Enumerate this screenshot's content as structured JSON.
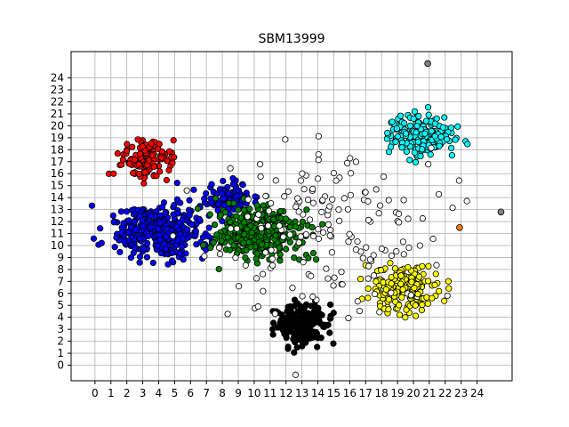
{
  "chart_data": {
    "type": "scatter",
    "title": "SBM13999",
    "xlabel": "",
    "ylabel": "",
    "xlim": [
      -1.5,
      26.2
    ],
    "ylim": [
      -1.3,
      26.2
    ],
    "x_ticks": [
      0,
      1,
      2,
      3,
      4,
      5,
      6,
      7,
      8,
      9,
      10,
      11,
      12,
      13,
      14,
      15,
      16,
      17,
      18,
      19,
      20,
      21,
      22,
      23,
      24
    ],
    "y_ticks": [
      0,
      1,
      2,
      3,
      4,
      5,
      6,
      7,
      8,
      9,
      10,
      11,
      12,
      13,
      14,
      15,
      16,
      17,
      18,
      19,
      20,
      21,
      22,
      23,
      24
    ],
    "grid": true,
    "legend": "none",
    "clusters": [
      {
        "color": "#ff0000",
        "center": [
          3.3,
          17.3
        ],
        "spread": [
          1.4,
          1.3
        ],
        "count": 140
      },
      {
        "color": "#0000ff",
        "center": [
          4.0,
          11.2
        ],
        "spread": [
          2.6,
          1.9
        ],
        "count": 340
      },
      {
        "color": "#0000ff",
        "center": [
          8.5,
          14.0
        ],
        "spread": [
          1.5,
          1.3
        ],
        "count": 110
      },
      {
        "color": "#008000",
        "center": [
          10.3,
          11.0
        ],
        "spread": [
          2.4,
          1.9
        ],
        "count": 320
      },
      {
        "color": "#000000",
        "center": [
          13.0,
          3.3
        ],
        "spread": [
          1.3,
          1.5
        ],
        "count": 220
      },
      {
        "color": "#ffff00",
        "center": [
          19.5,
          6.4
        ],
        "spread": [
          2.0,
          1.8
        ],
        "count": 200
      },
      {
        "color": "#00ffff",
        "center": [
          20.5,
          19.2
        ],
        "spread": [
          1.8,
          1.6
        ],
        "count": 200
      },
      {
        "color": "#ffffff",
        "center": [
          14.5,
          11.0
        ],
        "spread": [
          6.0,
          6.0
        ],
        "count": 170
      }
    ],
    "outliers": [
      {
        "x": 20.9,
        "y": 25.2,
        "color": "#808080"
      },
      {
        "x": 25.5,
        "y": 12.8,
        "color": "#808080"
      },
      {
        "x": 22.9,
        "y": 11.5,
        "color": "#ff7f0e"
      }
    ]
  }
}
